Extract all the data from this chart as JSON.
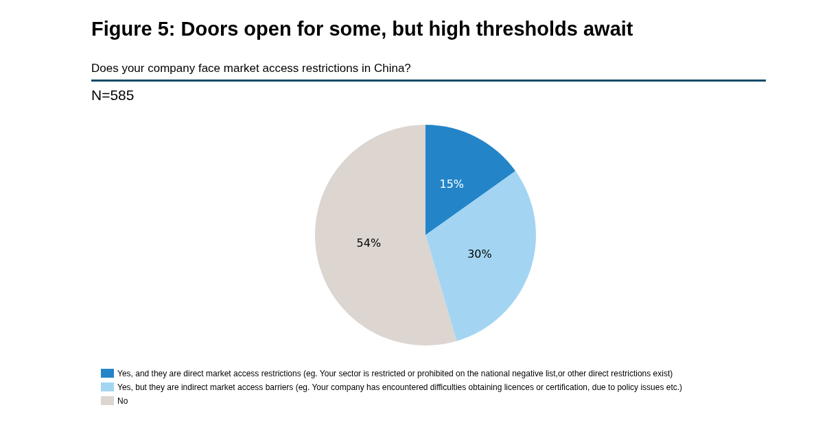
{
  "chart_data": {
    "type": "pie",
    "title": "Figure 5: Doors open for some, but high thresholds await",
    "subtitle": "Does your company face market access restrictions in China?",
    "annotations": [
      "N=585"
    ],
    "categories": [
      "Yes, and they are direct market access restrictions (eg. Your sector is restricted or prohibited on the national negative list,or other direct restrictions exist)",
      "Yes, but they are indirect market access barriers (eg. Your company has encountered difficulties obtaining licences or certification, due to policy issues etc.)",
      "No"
    ],
    "values": [
      15,
      30,
      54
    ],
    "value_labels": [
      "15%",
      "30%",
      "54%"
    ],
    "colors": [
      "#2385c8",
      "#a3d5f3",
      "#dcd5d0"
    ],
    "legend": "bottom left"
  }
}
